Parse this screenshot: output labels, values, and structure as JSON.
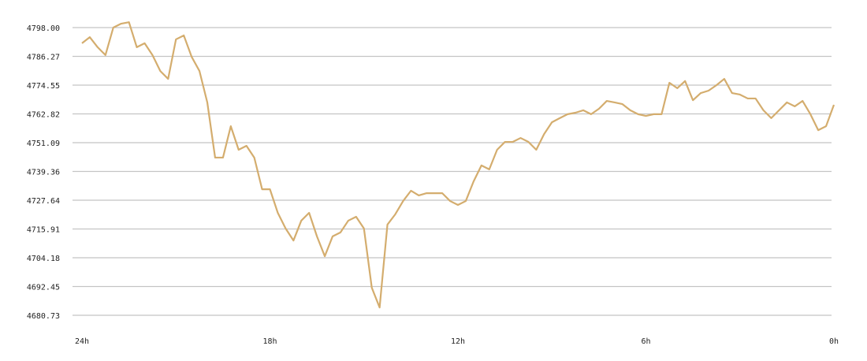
{
  "chart_data": {
    "type": "line",
    "x": [
      24,
      23.75,
      23.5,
      23.25,
      23,
      22.75,
      22.5,
      22.25,
      22,
      21.75,
      21.5,
      21.25,
      21,
      20.75,
      20.5,
      20.25,
      20,
      19.75,
      19.5,
      19.25,
      19,
      18.75,
      18.5,
      18.25,
      18,
      17.75,
      17.5,
      17.25,
      17,
      16.75,
      16.5,
      16.25,
      16,
      15.75,
      15.5,
      15.25,
      15,
      14.75,
      14.5,
      14.25,
      14,
      13.75,
      13.5,
      13.25,
      13,
      12.75,
      12.5,
      12.25,
      12,
      11.75,
      11.5,
      11.25,
      11,
      10.75,
      10.5,
      10.25,
      10,
      9.75,
      9.5,
      9.25,
      9,
      8.75,
      8.5,
      8.25,
      8,
      7.75,
      7.5,
      7.25,
      7,
      6.75,
      6.5,
      6.25,
      6,
      5.75,
      5.5,
      5.25,
      5,
      4.75,
      4.5,
      4.25,
      4,
      3.75,
      3.5,
      3.25,
      3,
      2.75,
      2.5,
      2.25,
      2,
      1.75,
      1.5,
      1.25,
      1,
      0.75,
      0.5,
      0.25,
      0
    ],
    "series": [
      {
        "color": "#d4ad6e",
        "values": [
          4791.6,
          4794.1,
          4790.0,
          4786.8,
          4798.0,
          4799.6,
          4800.2,
          4790.0,
          4791.6,
          4786.8,
          4780.3,
          4777.1,
          4793.2,
          4794.8,
          4786.1,
          4780.3,
          4767.5,
          4745.0,
          4745.0,
          4757.8,
          4748.2,
          4749.8,
          4745.0,
          4732.1,
          4732.1,
          4722.5,
          4716.1,
          4711.2,
          4719.3,
          4722.5,
          4712.9,
          4704.8,
          4712.9,
          4714.5,
          4719.3,
          4720.9,
          4716.1,
          4692.0,
          4683.9,
          4717.7,
          4721.9,
          4727.3,
          4731.5,
          4729.6,
          4730.5,
          4730.5,
          4730.5,
          4727.3,
          4725.7,
          4727.3,
          4735.3,
          4741.8,
          4740.2,
          4748.2,
          4751.4,
          4751.4,
          4753.0,
          4751.4,
          4748.2,
          4754.6,
          4759.4,
          4761.1,
          4762.7,
          4763.3,
          4764.3,
          4762.7,
          4764.9,
          4768.1,
          4767.5,
          4766.8,
          4764.3,
          4762.7,
          4762.0,
          4762.7,
          4762.7,
          4775.5,
          4773.3,
          4776.2,
          4768.4,
          4771.3,
          4772.3,
          4774.5,
          4777.1,
          4771.3,
          4770.7,
          4769.1,
          4769.1,
          4764.3,
          4761.1,
          4764.3,
          4767.5,
          4765.9,
          4768.1,
          4762.7,
          4756.2,
          4757.8,
          4766.5
        ]
      }
    ],
    "xlim": [
      24,
      0
    ],
    "xticks": [
      {
        "value": 24,
        "label": "24h"
      },
      {
        "value": 18,
        "label": "18h"
      },
      {
        "value": 12,
        "label": "12h"
      },
      {
        "value": 6,
        "label": "6h"
      },
      {
        "value": 0,
        "label": "0h"
      }
    ],
    "ylim": [
      4680.73,
      4798.0
    ],
    "yticks": [
      {
        "value": 4798.0,
        "label": "4798.00"
      },
      4786.27,
      4774.55,
      4762.82,
      4751.09,
      4739.36,
      4727.64,
      4715.91,
      4704.18,
      4692.45,
      4680.73
    ],
    "grid": true
  }
}
